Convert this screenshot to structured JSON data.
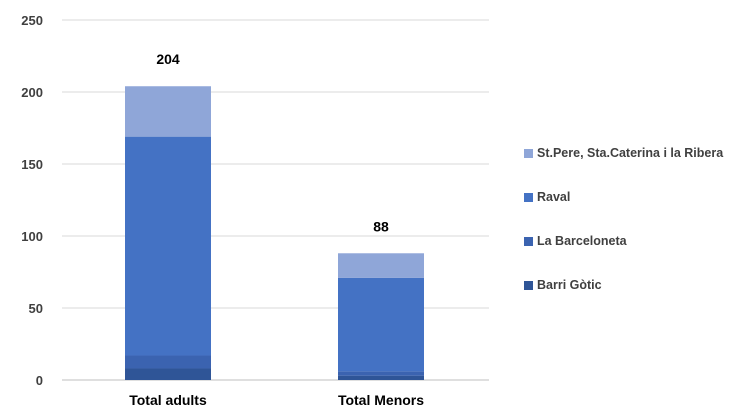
{
  "chart_data": {
    "type": "bar",
    "stacked": true,
    "categories": [
      "Total adults",
      "Total Menors"
    ],
    "totals": [
      "204",
      "88"
    ],
    "series": [
      {
        "name": "Barri Gòtic",
        "color": "#2f5597",
        "values": [
          8,
          3
        ]
      },
      {
        "name": "La Barceloneta",
        "color": "#3b63b0",
        "values": [
          9,
          3
        ]
      },
      {
        "name": "Raval",
        "color": "#4472c4",
        "values": [
          152,
          65
        ]
      },
      {
        "name": "St.Pere, Sta.Caterina i la Ribera",
        "color": "#8fa6d8",
        "values": [
          35,
          17
        ]
      }
    ],
    "yticks": [
      "0",
      "50",
      "100",
      "150",
      "200",
      "250"
    ],
    "ylim": [
      0,
      250
    ],
    "grid": true,
    "legend_position": "right"
  }
}
